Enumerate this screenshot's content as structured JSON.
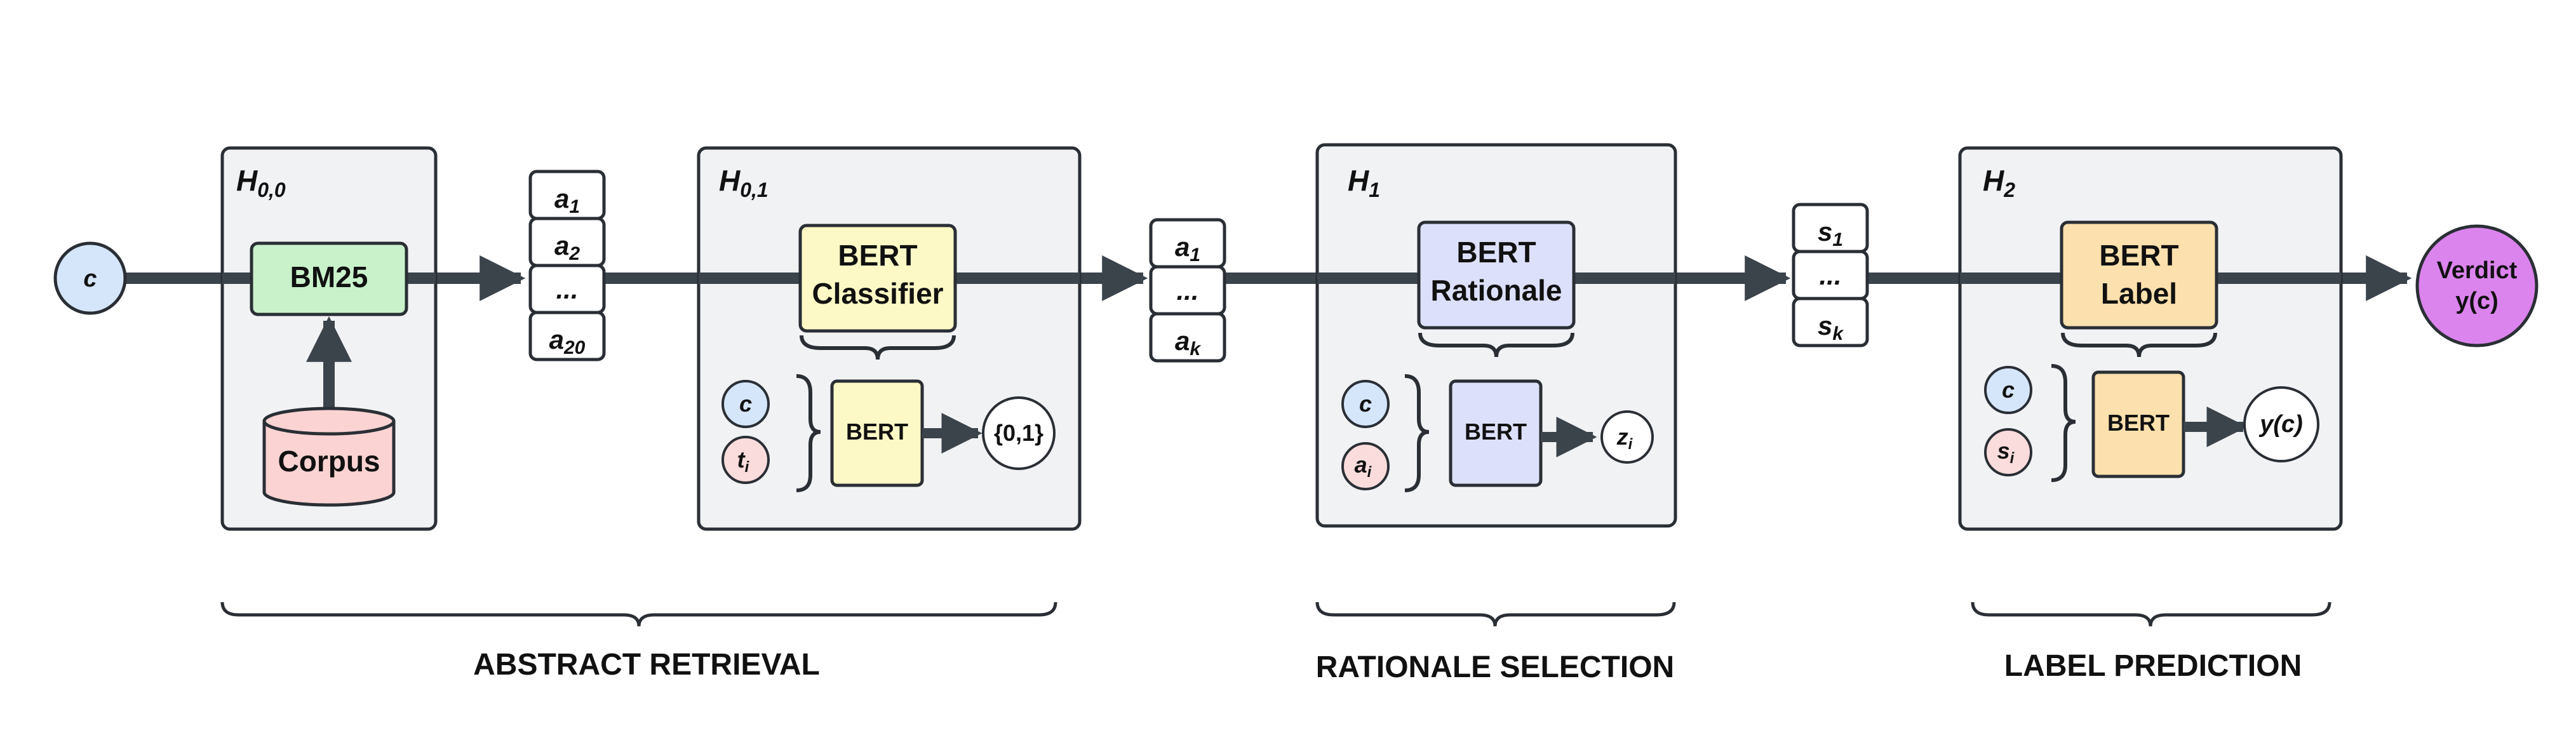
{
  "colors": {
    "line": "#3b434b",
    "panel_fill": "#f1f2f4",
    "panel_stroke": "#2a2f35",
    "c_fill": "#d5e6fb",
    "t_fill": "#fbdcdc",
    "bm25_fill": "#c9f2cb",
    "corpus_fill": "#fbd3d3",
    "classifier_fill": "#fdf9c6",
    "rationale_fill": "#dde0fb",
    "label_fill": "#fce0ad",
    "verdict_fill": "#dc84ee",
    "white": "#ffffff"
  },
  "input": {
    "c": "c"
  },
  "stage_abstract": {
    "panel_h00": {
      "label_base": "H",
      "label_sub": "0,0"
    },
    "bm25": "BM25",
    "corpus": "Corpus",
    "retrieved_list": [
      {
        "base": "a",
        "sub": "1"
      },
      {
        "base": "a",
        "sub": "2"
      },
      {
        "base": "...",
        "sub": ""
      },
      {
        "base": "a",
        "sub": "20"
      }
    ],
    "panel_h01": {
      "label_base": "H",
      "label_sub": "0,1"
    },
    "classifier_line1": "BERT",
    "classifier_line2": "Classifier",
    "detail_c": "c",
    "detail_t_base": "t",
    "detail_t_sub": "i",
    "detail_bert": "BERT",
    "detail_output": "{0,1}"
  },
  "stage_rationale": {
    "list": [
      {
        "base": "a",
        "sub": "1"
      },
      {
        "base": "...",
        "sub": ""
      },
      {
        "base": "a",
        "sub": "k"
      }
    ],
    "panel": {
      "label_base": "H",
      "label_sub": "1"
    },
    "model_line1": "BERT",
    "model_line2": "Rationale",
    "detail_c": "c",
    "detail_a_base": "a",
    "detail_a_sub": "i",
    "detail_bert": "BERT",
    "detail_out_base": "z",
    "detail_out_sub": "i"
  },
  "stage_label": {
    "list": [
      {
        "base": "s",
        "sub": "1"
      },
      {
        "base": "...",
        "sub": ""
      },
      {
        "base": "s",
        "sub": "k"
      }
    ],
    "panel": {
      "label_base": "H",
      "label_sub": "2"
    },
    "model_line1": "BERT",
    "model_line2": "Label",
    "detail_c": "c",
    "detail_s_base": "s",
    "detail_s_sub": "i",
    "detail_bert": "BERT",
    "detail_output": "y(c)"
  },
  "output": {
    "line1": "Verdict",
    "line2": "y(c)"
  },
  "stage_titles": {
    "abstract_retrieval": "ABSTRACT RETRIEVAL",
    "rationale_selection": "RATIONALE SELECTION",
    "label_prediction": "LABEL PREDICTION"
  }
}
